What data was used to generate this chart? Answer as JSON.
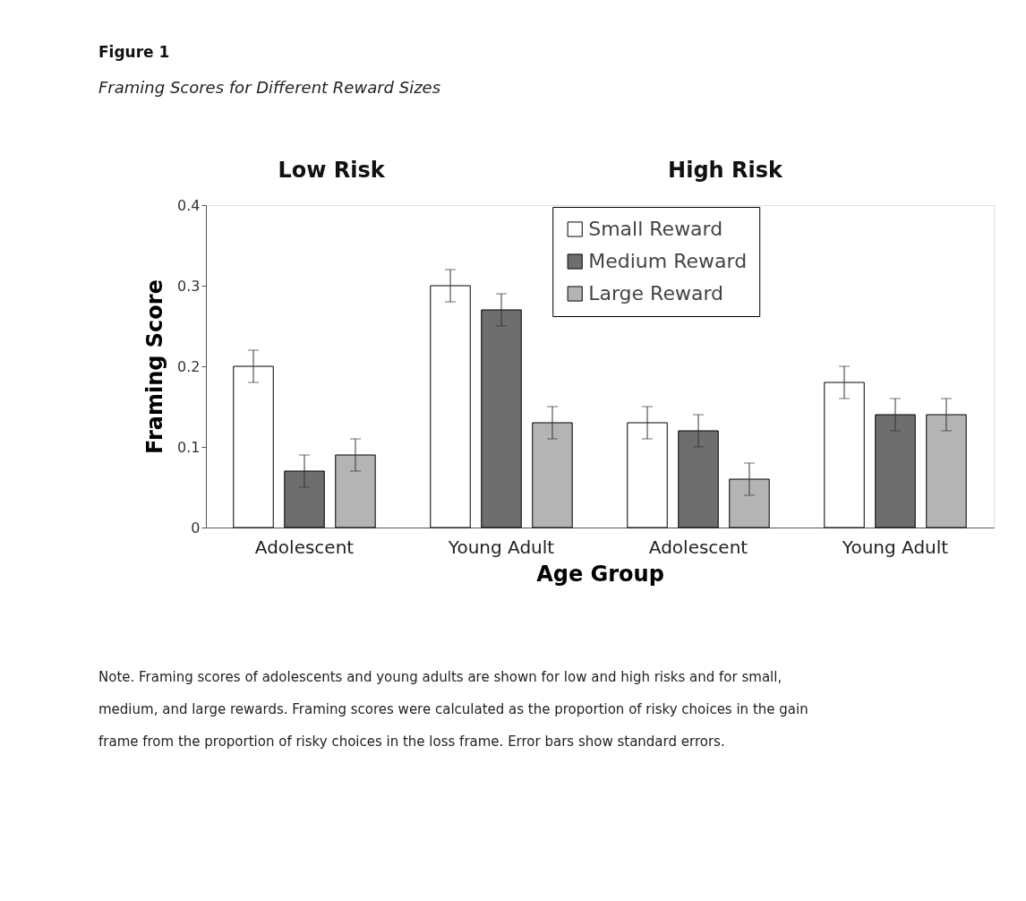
{
  "chart_data": {
    "type": "bar",
    "title": "Figure 1",
    "subtitle": "Framing Scores for Different Reward Sizes",
    "xlabel": "Age Group",
    "ylabel": "Framing Score",
    "categories": [
      "Adolescent",
      "Young Adult",
      "Adolescent",
      "Young Adult"
    ],
    "series": [
      {
        "name": "Small Reward",
        "color": "#ffffff",
        "values": [
          0.2,
          0.3,
          0.13,
          0.18
        ],
        "errors": [
          0.02,
          0.02,
          0.02,
          0.02
        ]
      },
      {
        "name": "Medium Reward",
        "color": "#6e6e6e",
        "values": [
          0.07,
          0.27,
          0.12,
          0.14
        ],
        "errors": [
          0.02,
          0.02,
          0.02,
          0.02
        ]
      },
      {
        "name": "Large Reward",
        "color": "#b4b4b4",
        "values": [
          0.09,
          0.13,
          0.06,
          0.14
        ],
        "errors": [
          0.02,
          0.02,
          0.02,
          0.02
        ]
      }
    ],
    "ylim": [
      0,
      0.4
    ],
    "yticks": [
      0,
      0.1,
      0.2,
      0.3,
      0.4
    ],
    "grid": false,
    "legend": "top right",
    "annotations": [
      "Low Risk",
      "High Risk",
      "Note. Framing scores of adolescents and young adults are shown for low and high risks and for small, medium, and large rewards. Framing scores were calculated as the proportion of risky choices in the gain frame from the proportion of risky choices in the loss frame. Error bars show standard errors."
    ]
  }
}
